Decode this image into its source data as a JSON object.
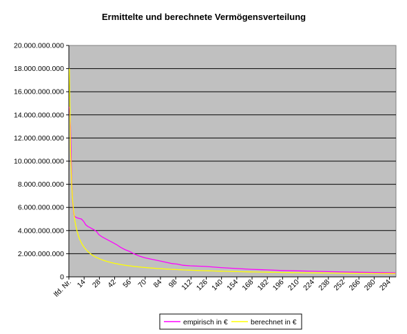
{
  "chart_data": {
    "type": "line",
    "title": "Ermittelte und berechnete Vermögensverteilung",
    "xlabel": "",
    "ylabel": "",
    "x_count": 300,
    "xlim": [
      1,
      300
    ],
    "ylim": [
      0,
      20000000000
    ],
    "y_ticks": [
      0,
      2000000000,
      4000000000,
      6000000000,
      8000000000,
      10000000000,
      12000000000,
      14000000000,
      16000000000,
      18000000000,
      20000000000
    ],
    "y_tick_labels": [
      "0",
      "2.000.000.000",
      "4.000.000.000",
      "6.000.000.000",
      "8.000.000.000",
      "10.000.000.000",
      "12.000.000.000",
      "14.000.000.000",
      "16.000.000.000",
      "18.000.000.000",
      "20.000.000.000"
    ],
    "x_tick_labels": [
      "lfd. Nr.",
      "14",
      "28",
      "42",
      "56",
      "70",
      "84",
      "98",
      "112",
      "126",
      "140",
      "154",
      "168",
      "182",
      "196",
      "210",
      "224",
      "238",
      "252",
      "266",
      "280",
      "294"
    ],
    "grid": true,
    "plot_background": "#c0c0c0",
    "legend_position": "bottom-center",
    "series": [
      {
        "name": "empirisch in €",
        "color": "#ff00ff",
        "points": [
          [
            1,
            14700000000
          ],
          [
            2,
            13000000000
          ],
          [
            3,
            8500000000
          ],
          [
            4,
            6400000000
          ],
          [
            5,
            5400000000
          ],
          [
            6,
            5200000000
          ],
          [
            8,
            5100000000
          ],
          [
            10,
            5050000000
          ],
          [
            12,
            5000000000
          ],
          [
            14,
            4800000000
          ],
          [
            16,
            4500000000
          ],
          [
            18,
            4350000000
          ],
          [
            20,
            4250000000
          ],
          [
            22,
            4150000000
          ],
          [
            24,
            4050000000
          ],
          [
            26,
            3900000000
          ],
          [
            28,
            3650000000
          ],
          [
            31,
            3450000000
          ],
          [
            34,
            3300000000
          ],
          [
            37,
            3150000000
          ],
          [
            40,
            3000000000
          ],
          [
            44,
            2800000000
          ],
          [
            48,
            2550000000
          ],
          [
            52,
            2350000000
          ],
          [
            56,
            2200000000
          ],
          [
            60,
            2000000000
          ],
          [
            65,
            1800000000
          ],
          [
            70,
            1650000000
          ],
          [
            75,
            1550000000
          ],
          [
            80,
            1450000000
          ],
          [
            85,
            1350000000
          ],
          [
            90,
            1250000000
          ],
          [
            95,
            1150000000
          ],
          [
            100,
            1100000000
          ],
          [
            105,
            1000000000
          ],
          [
            112,
            950000000
          ],
          [
            126,
            900000000
          ],
          [
            140,
            800000000
          ],
          [
            154,
            720000000
          ],
          [
            168,
            650000000
          ],
          [
            182,
            600000000
          ],
          [
            196,
            550000000
          ],
          [
            210,
            520000000
          ],
          [
            224,
            480000000
          ],
          [
            238,
            450000000
          ],
          [
            252,
            420000000
          ],
          [
            266,
            400000000
          ],
          [
            280,
            380000000
          ],
          [
            294,
            360000000
          ],
          [
            300,
            350000000
          ]
        ]
      },
      {
        "name": "berechnet in €",
        "color": "#ffff00",
        "model": {
          "a": 18000000000,
          "k": 0.73
        }
      }
    ]
  }
}
